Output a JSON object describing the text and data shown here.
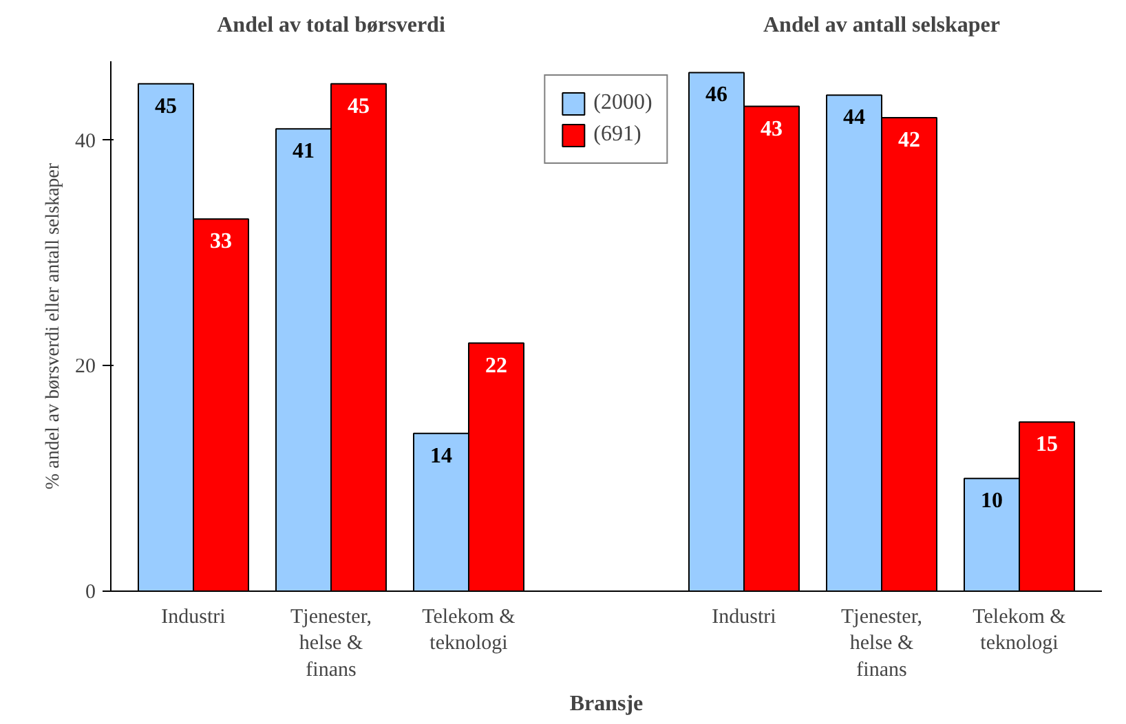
{
  "chart_data": {
    "type": "bar",
    "xlabel": "Bransje",
    "ylabel": "% andel av børsverdi eller antall selskaper",
    "annotations": [
      "Andel av total børsverdi",
      "Andel av antall selskaper"
    ],
    "categories": [
      "Industri",
      "Tjenester, helse & finans",
      "Telekom & teknologi",
      null,
      "Industri",
      "Tjenester, helse & finans",
      "Telekom & teknologi"
    ],
    "series": [
      {
        "name": "(2000)",
        "color": "#99ccff",
        "values": [
          45,
          41,
          14,
          null,
          46,
          44,
          10
        ]
      },
      {
        "name": "(691)",
        "color": "#ff0000",
        "values": [
          33,
          45,
          22,
          null,
          43,
          42,
          15
        ]
      }
    ],
    "ylim": [
      0,
      47
    ],
    "yticks": [
      0,
      20,
      40
    ],
    "grid": false,
    "legend": "top",
    "data_labels": true
  }
}
